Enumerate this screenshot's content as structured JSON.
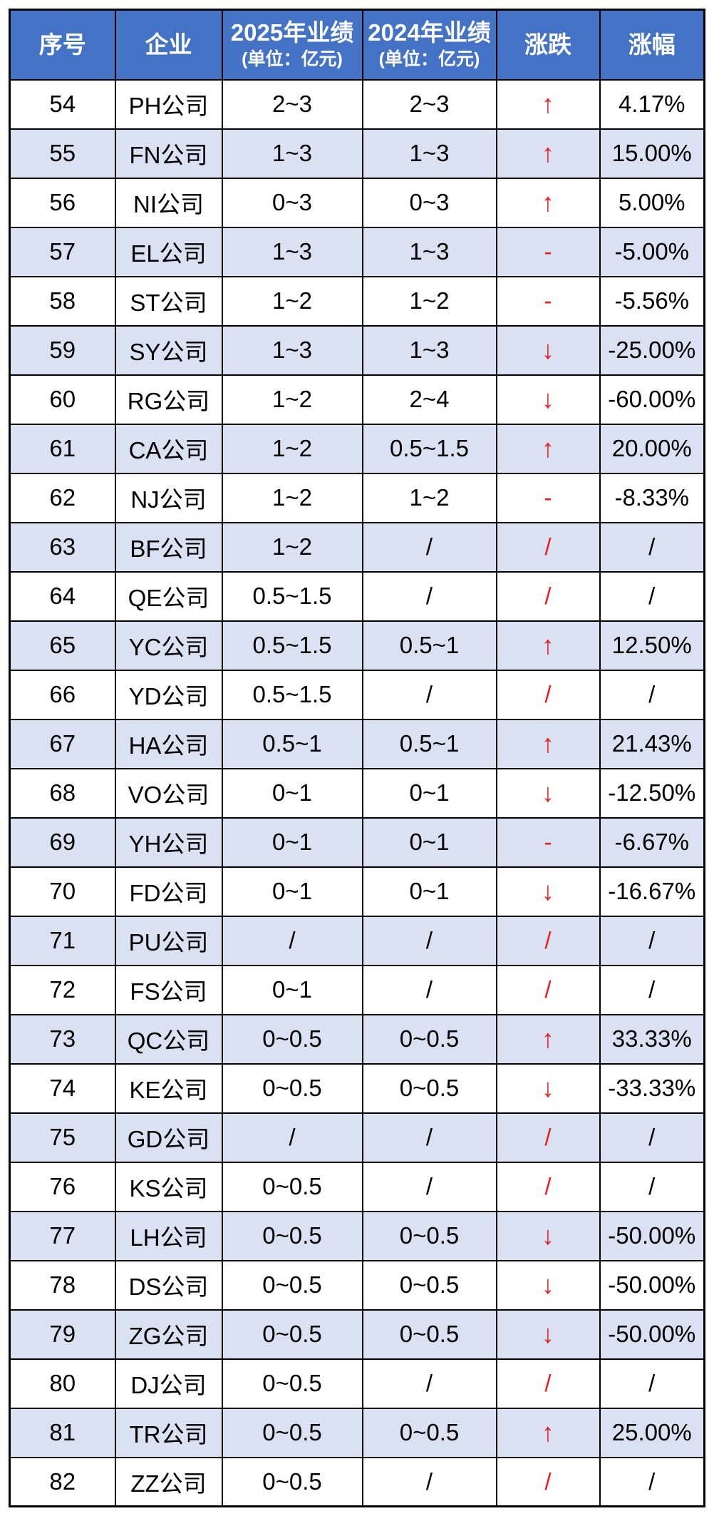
{
  "chart_data": {
    "type": "table",
    "columns": [
      {
        "label": "序号"
      },
      {
        "label": "企业"
      },
      {
        "label": "2025年业绩",
        "sub": "(单位：亿元)"
      },
      {
        "label": "2024年业绩",
        "sub": "(单位：亿元)"
      },
      {
        "label": "涨跌"
      },
      {
        "label": "涨幅"
      }
    ],
    "trend_glyphs": {
      "up": "↑",
      "down": "↓",
      "flat": "-",
      "na": "/"
    },
    "colors": {
      "header_bg": "#4472C4",
      "band_bg": "#D9E1F2",
      "trend_red": "#EC1C1C",
      "border": "#000000",
      "text": "#000000",
      "header_text": "#FFFFFF"
    },
    "rows": [
      {
        "no": "54",
        "company": "PH公司",
        "y2025": "2~3",
        "y2024": "2~3",
        "trend": "up",
        "change": "4.17%"
      },
      {
        "no": "55",
        "company": "FN公司",
        "y2025": "1~3",
        "y2024": "1~3",
        "trend": "up",
        "change": "15.00%"
      },
      {
        "no": "56",
        "company": "NI公司",
        "y2025": "0~3",
        "y2024": "0~3",
        "trend": "up",
        "change": "5.00%"
      },
      {
        "no": "57",
        "company": "EL公司",
        "y2025": "1~3",
        "y2024": "1~3",
        "trend": "flat",
        "change": "-5.00%"
      },
      {
        "no": "58",
        "company": "ST公司",
        "y2025": "1~2",
        "y2024": "1~2",
        "trend": "flat",
        "change": "-5.56%"
      },
      {
        "no": "59",
        "company": "SY公司",
        "y2025": "1~3",
        "y2024": "1~3",
        "trend": "down",
        "change": "-25.00%"
      },
      {
        "no": "60",
        "company": "RG公司",
        "y2025": "1~2",
        "y2024": "2~4",
        "trend": "down",
        "change": "-60.00%"
      },
      {
        "no": "61",
        "company": "CA公司",
        "y2025": "1~2",
        "y2024": "0.5~1.5",
        "trend": "up",
        "change": "20.00%"
      },
      {
        "no": "62",
        "company": "NJ公司",
        "y2025": "1~2",
        "y2024": "1~2",
        "trend": "flat",
        "change": "-8.33%"
      },
      {
        "no": "63",
        "company": "BF公司",
        "y2025": "1~2",
        "y2024": "/",
        "trend": "na",
        "change": "/"
      },
      {
        "no": "64",
        "company": "QE公司",
        "y2025": "0.5~1.5",
        "y2024": "/",
        "trend": "na",
        "change": "/"
      },
      {
        "no": "65",
        "company": "YC公司",
        "y2025": "0.5~1.5",
        "y2024": "0.5~1",
        "trend": "up",
        "change": "12.50%"
      },
      {
        "no": "66",
        "company": "YD公司",
        "y2025": "0.5~1.5",
        "y2024": "/",
        "trend": "na",
        "change": "/"
      },
      {
        "no": "67",
        "company": "HA公司",
        "y2025": "0.5~1",
        "y2024": "0.5~1",
        "trend": "up",
        "change": "21.43%"
      },
      {
        "no": "68",
        "company": "VO公司",
        "y2025": "0~1",
        "y2024": "0~1",
        "trend": "down",
        "change": "-12.50%"
      },
      {
        "no": "69",
        "company": "YH公司",
        "y2025": "0~1",
        "y2024": "0~1",
        "trend": "flat",
        "change": "-6.67%"
      },
      {
        "no": "70",
        "company": "FD公司",
        "y2025": "0~1",
        "y2024": "0~1",
        "trend": "down",
        "change": "-16.67%"
      },
      {
        "no": "71",
        "company": "PU公司",
        "y2025": "/",
        "y2024": "/",
        "trend": "na",
        "change": "/"
      },
      {
        "no": "72",
        "company": "FS公司",
        "y2025": "0~1",
        "y2024": "/",
        "trend": "na",
        "change": "/"
      },
      {
        "no": "73",
        "company": "QC公司",
        "y2025": "0~0.5",
        "y2024": "0~0.5",
        "trend": "up",
        "change": "33.33%"
      },
      {
        "no": "74",
        "company": "KE公司",
        "y2025": "0~0.5",
        "y2024": "0~0.5",
        "trend": "down",
        "change": "-33.33%"
      },
      {
        "no": "75",
        "company": "GD公司",
        "y2025": "/",
        "y2024": "/",
        "trend": "na",
        "change": "/"
      },
      {
        "no": "76",
        "company": "KS公司",
        "y2025": "0~0.5",
        "y2024": "/",
        "trend": "na",
        "change": "/"
      },
      {
        "no": "77",
        "company": "LH公司",
        "y2025": "0~0.5",
        "y2024": "0~0.5",
        "trend": "down",
        "change": "-50.00%"
      },
      {
        "no": "78",
        "company": "DS公司",
        "y2025": "0~0.5",
        "y2024": "0~0.5",
        "trend": "down",
        "change": "-50.00%"
      },
      {
        "no": "79",
        "company": "ZG公司",
        "y2025": "0~0.5",
        "y2024": "0~0.5",
        "trend": "down",
        "change": "-50.00%"
      },
      {
        "no": "80",
        "company": "DJ公司",
        "y2025": "0~0.5",
        "y2024": "/",
        "trend": "na",
        "change": "/"
      },
      {
        "no": "81",
        "company": "TR公司",
        "y2025": "0~0.5",
        "y2024": "0~0.5",
        "trend": "up",
        "change": "25.00%"
      },
      {
        "no": "82",
        "company": "ZZ公司",
        "y2025": "0~0.5",
        "y2024": "/",
        "trend": "na",
        "change": "/"
      }
    ]
  }
}
